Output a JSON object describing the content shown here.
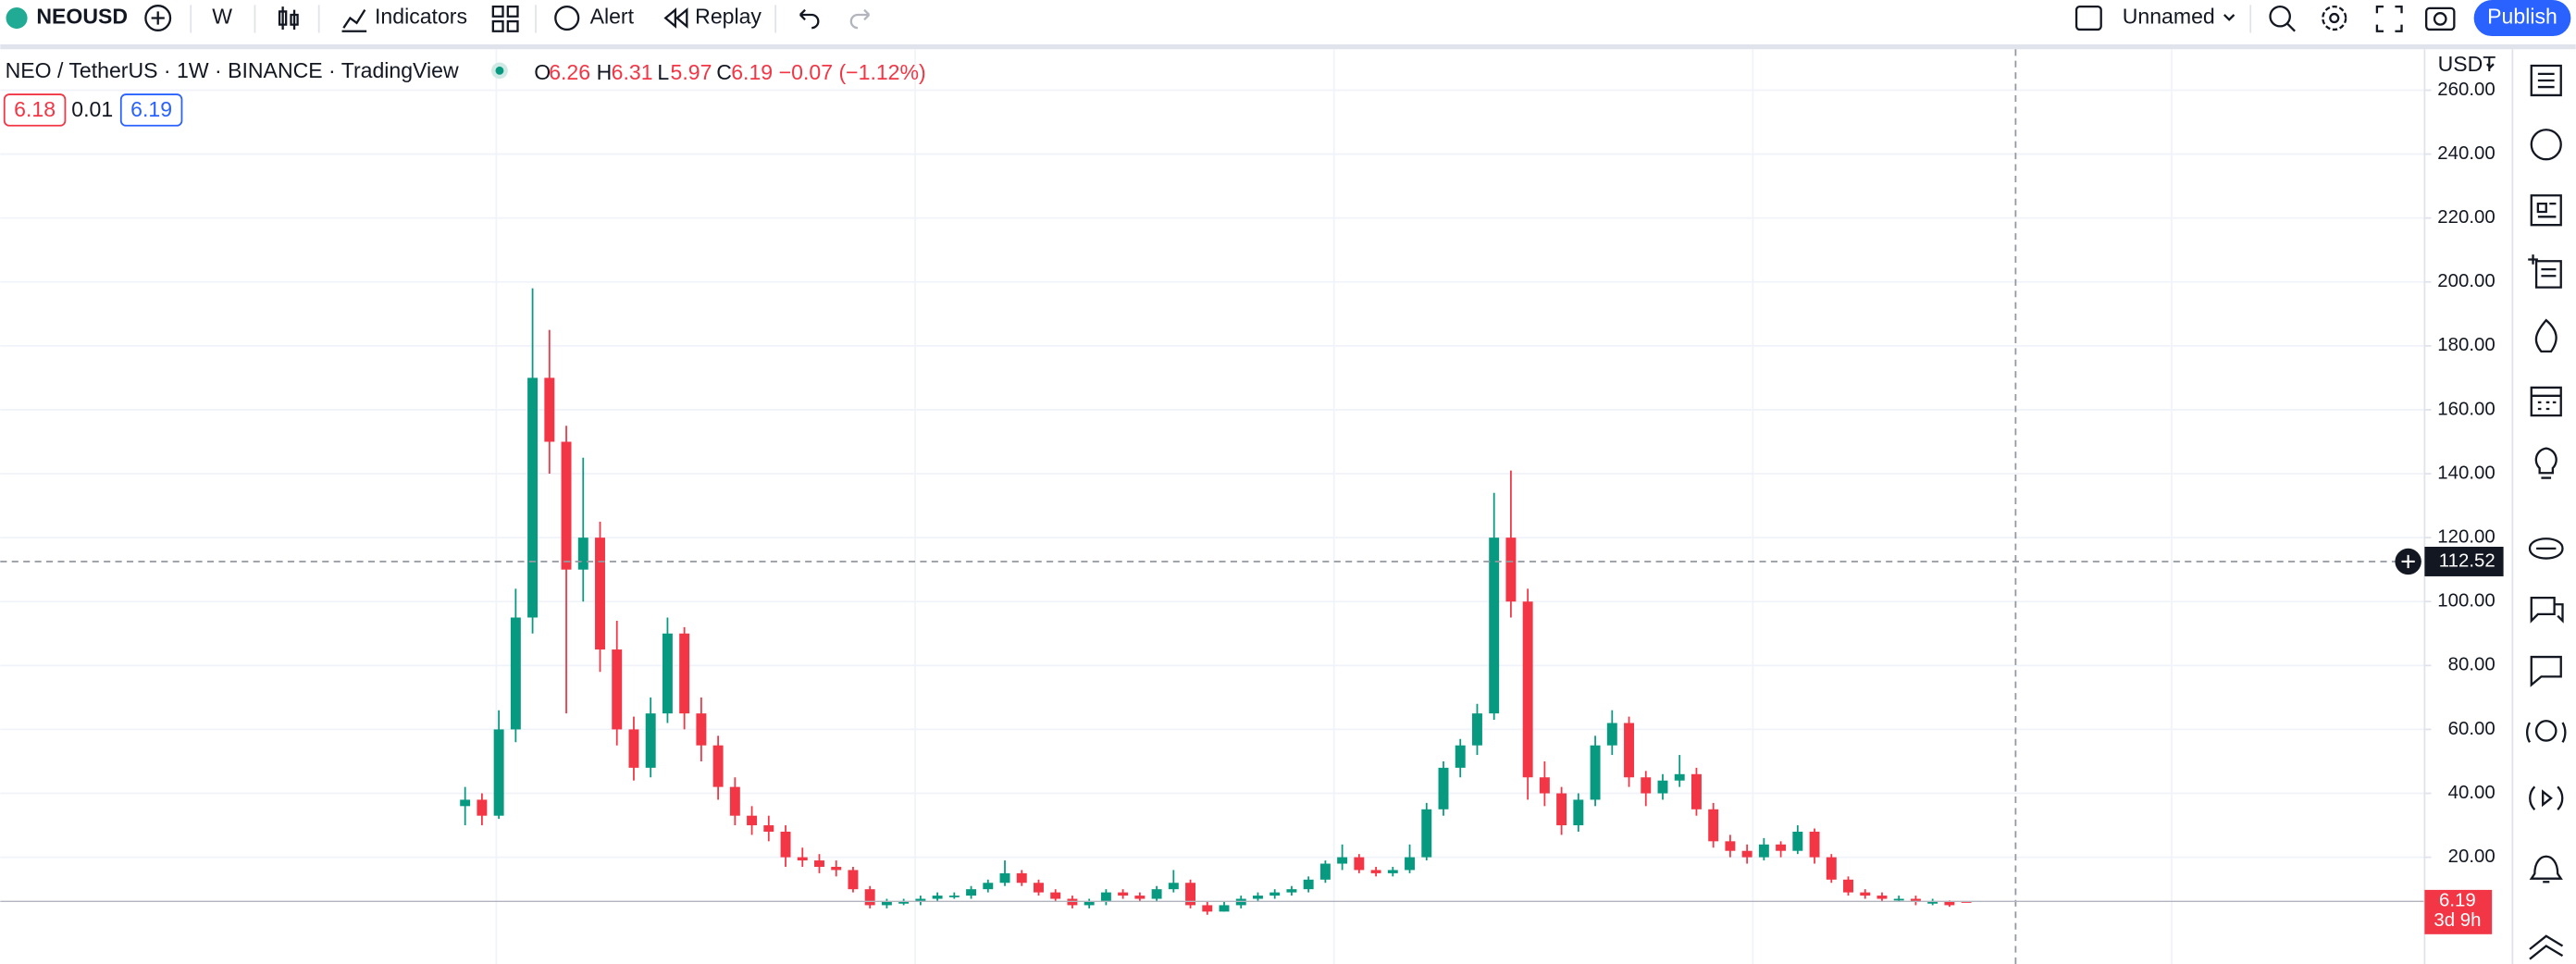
{
  "toolbar": {
    "symbol": "NEOUSD",
    "interval": "W",
    "indicators": "Indicators",
    "alert": "Alert",
    "replay": "Replay",
    "layout_name": "Unnamed",
    "publish": "Publish"
  },
  "legend": {
    "title": "NEO / TetherUS · 1W · BINANCE · TradingView",
    "o_key": "O",
    "o": "6.26",
    "h_key": "H",
    "h": "6.31",
    "l_key": "L",
    "l": "5.97",
    "c_key": "C",
    "c": "6.19",
    "change": "−0.07 (−1.12%)",
    "bid": "6.18",
    "spread": "0.01",
    "ask": "6.19"
  },
  "chart_data": {
    "type": "candlestick",
    "currency": "USDT",
    "up_color": "#089981",
    "down_color": "#f23645",
    "ylim": [
      -13.4,
      272.8
    ],
    "yticks": [
      {
        "value": 20,
        "label": "20.00"
      },
      {
        "value": 40,
        "label": "40.00"
      },
      {
        "value": 60,
        "label": "60.00"
      },
      {
        "value": 80,
        "label": "80.00"
      },
      {
        "value": 100,
        "label": "100.00"
      },
      {
        "value": 120,
        "label": "120.00"
      },
      {
        "value": 140,
        "label": "140.00"
      },
      {
        "value": 160,
        "label": "160.00"
      },
      {
        "value": 180,
        "label": "180.00"
      },
      {
        "value": 200,
        "label": "200.00"
      },
      {
        "value": 220,
        "label": "220.00"
      },
      {
        "value": 240,
        "label": "240.00"
      },
      {
        "value": 260,
        "label": "260.00"
      }
    ],
    "grid": true,
    "crosshair_price": 112.52,
    "last_price": 6.19,
    "countdown": "3d 9h",
    "candles": [
      [
        36,
        42,
        30,
        38
      ],
      [
        38,
        40,
        30,
        33
      ],
      [
        33,
        66,
        32,
        60
      ],
      [
        60,
        104,
        56,
        95
      ],
      [
        95,
        198,
        90,
        170
      ],
      [
        170,
        185,
        140,
        150
      ],
      [
        150,
        155,
        65,
        110
      ],
      [
        110,
        145,
        100,
        120
      ],
      [
        120,
        125,
        78,
        85
      ],
      [
        85,
        94,
        55,
        60
      ],
      [
        60,
        64,
        44,
        48
      ],
      [
        48,
        70,
        45,
        65
      ],
      [
        65,
        95,
        62,
        90
      ],
      [
        90,
        92,
        60,
        65
      ],
      [
        65,
        70,
        50,
        55
      ],
      [
        55,
        58,
        38,
        42
      ],
      [
        42,
        45,
        30,
        33
      ],
      [
        33,
        36,
        27,
        30
      ],
      [
        30,
        33,
        25,
        28
      ],
      [
        28,
        30,
        17,
        20
      ],
      [
        20,
        23,
        17,
        19
      ],
      [
        19,
        21,
        15,
        17
      ],
      [
        17,
        19,
        14,
        16
      ],
      [
        16,
        17,
        9,
        10
      ],
      [
        10,
        11,
        4,
        5
      ],
      [
        5,
        7,
        4,
        6
      ],
      [
        6,
        7,
        5,
        6
      ],
      [
        6,
        8,
        5,
        7
      ],
      [
        7,
        9,
        6,
        8
      ],
      [
        8,
        9,
        7,
        8
      ],
      [
        8,
        11,
        7,
        10
      ],
      [
        10,
        13,
        9,
        12
      ],
      [
        12,
        19,
        11,
        15
      ],
      [
        15,
        16,
        11,
        12
      ],
      [
        12,
        13,
        8,
        9
      ],
      [
        9,
        10,
        6,
        7
      ],
      [
        7,
        8,
        4,
        5
      ],
      [
        5,
        7,
        4,
        6
      ],
      [
        6,
        10,
        5,
        9
      ],
      [
        9,
        10,
        7,
        8
      ],
      [
        8,
        9,
        6,
        7
      ],
      [
        7,
        11,
        6,
        10
      ],
      [
        10,
        16,
        9,
        12
      ],
      [
        12,
        13,
        4,
        5
      ],
      [
        5,
        6,
        2,
        3
      ],
      [
        3,
        6,
        3,
        5
      ],
      [
        5,
        8,
        4,
        7
      ],
      [
        7,
        9,
        6,
        8
      ],
      [
        8,
        10,
        7,
        9
      ],
      [
        9,
        11,
        8,
        10
      ],
      [
        10,
        14,
        9,
        13
      ],
      [
        13,
        19,
        12,
        18
      ],
      [
        18,
        24,
        16,
        20
      ],
      [
        20,
        21,
        15,
        16
      ],
      [
        16,
        17,
        14,
        15
      ],
      [
        15,
        17,
        14,
        16
      ],
      [
        16,
        24,
        15,
        20
      ],
      [
        20,
        37,
        19,
        35
      ],
      [
        35,
        50,
        33,
        48
      ],
      [
        48,
        57,
        45,
        55
      ],
      [
        55,
        68,
        52,
        65
      ],
      [
        65,
        134,
        63,
        120
      ],
      [
        120,
        141,
        95,
        100
      ],
      [
        100,
        104,
        38,
        45
      ],
      [
        45,
        50,
        36,
        40
      ],
      [
        40,
        42,
        27,
        30
      ],
      [
        30,
        40,
        28,
        38
      ],
      [
        38,
        58,
        36,
        55
      ],
      [
        55,
        66,
        52,
        62
      ],
      [
        62,
        64,
        42,
        45
      ],
      [
        45,
        47,
        36,
        40
      ],
      [
        40,
        46,
        38,
        44
      ],
      [
        44,
        52,
        42,
        46
      ],
      [
        46,
        48,
        33,
        35
      ],
      [
        35,
        37,
        23,
        25
      ],
      [
        25,
        27,
        20,
        22
      ],
      [
        22,
        24,
        18,
        20
      ],
      [
        20,
        26,
        19,
        24
      ],
      [
        24,
        25,
        20,
        22
      ],
      [
        22,
        30,
        21,
        28
      ],
      [
        28,
        29,
        18,
        20
      ],
      [
        20,
        21,
        12,
        13
      ],
      [
        13,
        14,
        8,
        9
      ],
      [
        9,
        10,
        7,
        8
      ],
      [
        8,
        9,
        6,
        7
      ],
      [
        7,
        8,
        6,
        7
      ],
      [
        7,
        8,
        5,
        6
      ],
      [
        6,
        7,
        5,
        6
      ],
      [
        6,
        6.5,
        4.5,
        5
      ],
      [
        6.26,
        6.31,
        5.97,
        6.19
      ]
    ]
  }
}
